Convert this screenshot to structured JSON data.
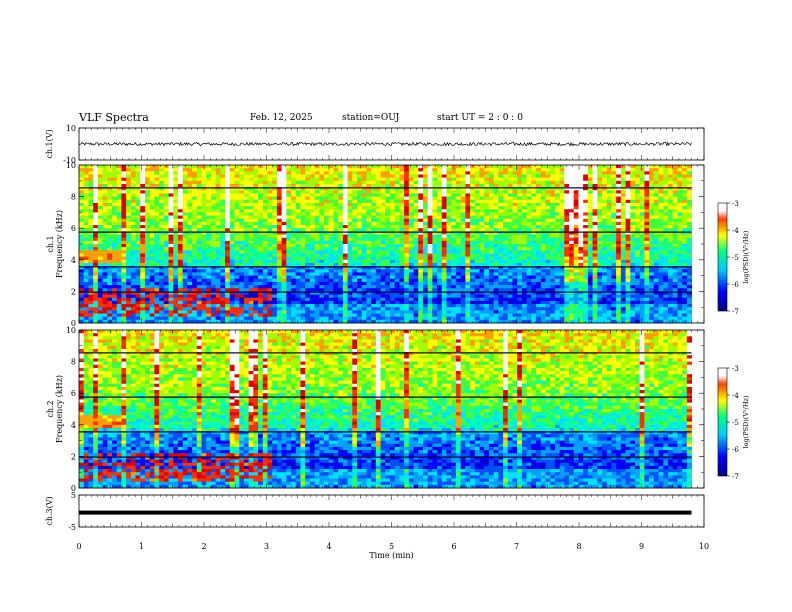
{
  "header": {
    "title": "VLF Spectra",
    "date": "Feb. 12, 2025",
    "station": "station=OUJ",
    "start": "start UT =  2 : 0  : 0"
  },
  "chart_data": [
    {
      "type": "line",
      "name": "ch1-waveform",
      "ylabel": "ch.1(V)",
      "ylim": [
        -10,
        10
      ],
      "ytick_labels": [
        "10",
        "-10"
      ],
      "xlim": [
        0,
        10
      ],
      "series": [
        {
          "x_range": [
            0,
            9.8
          ],
          "approx_level": 0,
          "amplitude_band": [
            -1,
            1
          ]
        }
      ]
    },
    {
      "type": "heatmap",
      "name": "ch1-spectrogram",
      "ylabel": "ch.1\nFrequency (kHz)",
      "ylim": [
        0,
        10
      ],
      "ytick_labels": [
        "0",
        "2",
        "4",
        "6",
        "8",
        "10"
      ],
      "xlim": [
        0,
        10
      ],
      "data_time_range_min": [
        0,
        9.8
      ],
      "colorbar": {
        "label": "log(PSD)(V²/Hz)",
        "range": [
          -7,
          -3
        ],
        "tick_labels": [
          "-3",
          "-4",
          "-5",
          "-6",
          "-7"
        ]
      }
    },
    {
      "type": "heatmap",
      "name": "ch2-spectrogram",
      "ylabel": "ch.2\nFrequency (kHz)",
      "ylim": [
        0,
        10
      ],
      "ytick_labels": [
        "0",
        "2",
        "4",
        "6",
        "8",
        "10"
      ],
      "xlim": [
        0,
        10
      ],
      "data_time_range_min": [
        0,
        9.8
      ],
      "colorbar": {
        "label": "log(PSD)(V²/Hz)",
        "range": [
          -7,
          -3
        ],
        "tick_labels": [
          "-3",
          "-4",
          "-5",
          "-6",
          "-7"
        ]
      }
    },
    {
      "type": "line",
      "name": "ch3-waveform",
      "ylabel": "ch.3(V)",
      "ylim": [
        -5,
        5
      ],
      "ytick_labels": [
        "5",
        "-5"
      ],
      "xlim": [
        0,
        10
      ],
      "series": [
        {
          "x_range": [
            0,
            9.8
          ],
          "approx_level": -0.5
        }
      ]
    }
  ],
  "xaxis": {
    "label": "Time (min)",
    "tick_labels": [
      "0",
      "1",
      "2",
      "3",
      "4",
      "5",
      "6",
      "7",
      "8",
      "9",
      "10"
    ]
  }
}
